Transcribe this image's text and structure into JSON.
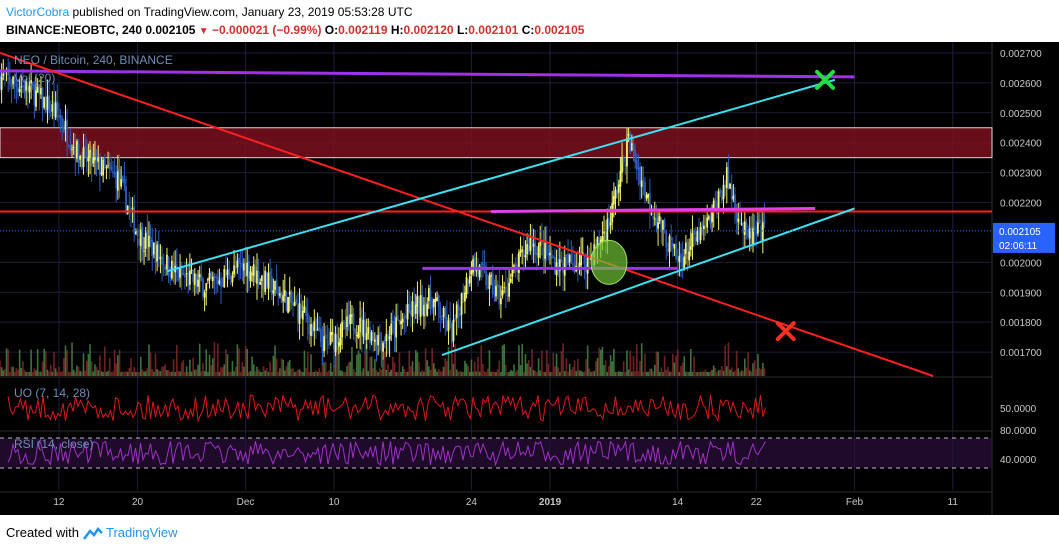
{
  "header": {
    "author": "VictorCobra",
    "published_text": "published on TradingView.com, January 23, 2019 05:53:28 UTC",
    "symbol": "BINANCE:NEOBTC, 240",
    "last": "0.002105",
    "change": "−0.000021 (−0.99%)",
    "o_label": "O:",
    "o_value": "0.002119",
    "h_label": "H:",
    "h_value": "0.002120",
    "l_label": "L:",
    "l_value": "0.002101",
    "c_label": "C:",
    "c_value": "0.002105"
  },
  "footer": {
    "created_with": "Created with",
    "brand": "TradingView"
  },
  "colors": {
    "background": "#000000",
    "candle": "#f5f56a",
    "candle_alt": "#2d5dbd",
    "trend_red": "#ff2020",
    "channel_cyan": "#3de0f0",
    "horizontal_purple": "#9d32e6",
    "magenta": "#e040e8",
    "resistance_zone": "#7a1020",
    "uo_line": "#e01818",
    "rsi_line": "#a030c8",
    "target_green": "#20e040",
    "stop_red": "#ff3020",
    "circle_green": "#6fc234",
    "current_price_label": "#2962ff"
  },
  "chart_data": {
    "type": "candlestick",
    "title": "NEO / Bitcoin, 240, BINANCE",
    "panes": {
      "main": "NEO / Bitcoin, 240, BINANCE",
      "volume": "Vol (20)",
      "uo": "UO (7, 14, 28)",
      "rsi": "RSI (14, close)"
    },
    "price_axis": {
      "ticks": [
        "0.002700",
        "0.002600",
        "0.002500",
        "0.002400",
        "0.002300",
        "0.002200",
        "0.002000",
        "0.001900",
        "0.001800",
        "0.001700"
      ],
      "ylim": [
        0.00162,
        0.00273
      ],
      "current_price": "0.002105",
      "countdown": "02:06:11"
    },
    "uo_axis": {
      "ticks": [
        "50.0000"
      ],
      "value": 50
    },
    "rsi_axis": {
      "ticks": [
        "80.0000",
        "40.0000"
      ],
      "bands": [
        70,
        30
      ]
    },
    "x_axis": {
      "labels": [
        "12",
        "20",
        "Dec",
        "10",
        "24",
        "2019",
        "14",
        "22",
        "Feb",
        "11"
      ],
      "label_dates": [
        "2018-11-12",
        "2018-11-20",
        "2018-12-01",
        "2018-12-10",
        "2018-12-24",
        "2019-01-01",
        "2019-01-14",
        "2019-01-22",
        "2019-02-01",
        "2019-02-11"
      ],
      "range": [
        "2018-11-06",
        "2019-02-15"
      ]
    },
    "price_path": [
      {
        "date": "2018-11-06",
        "price": 0.00262
      },
      {
        "date": "2018-11-09",
        "price": 0.00258
      },
      {
        "date": "2018-11-12",
        "price": 0.00249
      },
      {
        "date": "2018-11-14",
        "price": 0.00236
      },
      {
        "date": "2018-11-18",
        "price": 0.00228
      },
      {
        "date": "2018-11-20",
        "price": 0.0021
      },
      {
        "date": "2018-11-24",
        "price": 0.00196
      },
      {
        "date": "2018-11-27",
        "price": 0.00192
      },
      {
        "date": "2018-12-01",
        "price": 0.00199
      },
      {
        "date": "2018-12-04",
        "price": 0.00191
      },
      {
        "date": "2018-12-07",
        "price": 0.00182
      },
      {
        "date": "2018-12-09",
        "price": 0.00172
      },
      {
        "date": "2018-12-12",
        "price": 0.0018
      },
      {
        "date": "2018-12-15",
        "price": 0.00174
      },
      {
        "date": "2018-12-18",
        "price": 0.00184
      },
      {
        "date": "2018-12-20",
        "price": 0.00188
      },
      {
        "date": "2018-12-22",
        "price": 0.00176
      },
      {
        "date": "2018-12-24",
        "price": 0.002
      },
      {
        "date": "2018-12-27",
        "price": 0.00188
      },
      {
        "date": "2018-12-30",
        "price": 0.00207
      },
      {
        "date": "2019-01-02",
        "price": 0.00199
      },
      {
        "date": "2019-01-05",
        "price": 0.00201
      },
      {
        "date": "2019-01-07",
        "price": 0.00213
      },
      {
        "date": "2019-01-09",
        "price": 0.00241
      },
      {
        "date": "2019-01-11",
        "price": 0.00221
      },
      {
        "date": "2019-01-14",
        "price": 0.002
      },
      {
        "date": "2019-01-17",
        "price": 0.00212
      },
      {
        "date": "2019-01-19",
        "price": 0.00228
      },
      {
        "date": "2019-01-21",
        "price": 0.00208
      },
      {
        "date": "2019-01-23",
        "price": 0.002105
      }
    ],
    "drawings": [
      {
        "kind": "zone",
        "price_low": 0.00235,
        "price_high": 0.00245,
        "from": "2018-11-06",
        "to": "2019-02-15"
      },
      {
        "kind": "line",
        "name": "horizontal",
        "price": 0.00217,
        "from": "2018-11-06",
        "to": "2019-02-15"
      },
      {
        "kind": "line",
        "name": "top-purple",
        "from": [
          "2018-11-06",
          0.00264
        ],
        "to": [
          "2019-02-01",
          0.00262
        ]
      },
      {
        "kind": "line",
        "name": "descending-red",
        "from": [
          "2018-11-06",
          0.0027
        ],
        "to": [
          "2019-02-09",
          0.00162
        ]
      },
      {
        "kind": "line",
        "name": "channel-upper",
        "from": [
          "2018-11-23",
          0.00197
        ],
        "to": [
          "2019-01-30",
          0.00261
        ]
      },
      {
        "kind": "line",
        "name": "channel-lower",
        "from": [
          "2018-12-21",
          0.00169
        ],
        "to": [
          "2019-02-01",
          0.00218
        ]
      },
      {
        "kind": "line",
        "name": "support-purple",
        "from": [
          "2018-12-19",
          0.00198
        ],
        "to": [
          "2019-01-14",
          0.00198
        ]
      },
      {
        "kind": "line",
        "name": "resistance-magenta",
        "from": [
          "2018-12-26",
          0.00217
        ],
        "to": [
          "2019-01-28",
          0.00218
        ]
      },
      {
        "kind": "circle",
        "date": "2019-01-07",
        "price": 0.002
      },
      {
        "kind": "marker",
        "symbol": "check-x-green",
        "date": "2019-01-29",
        "price": 0.00261
      },
      {
        "kind": "marker",
        "symbol": "x-red",
        "date": "2019-01-25",
        "price": 0.00177
      }
    ]
  }
}
